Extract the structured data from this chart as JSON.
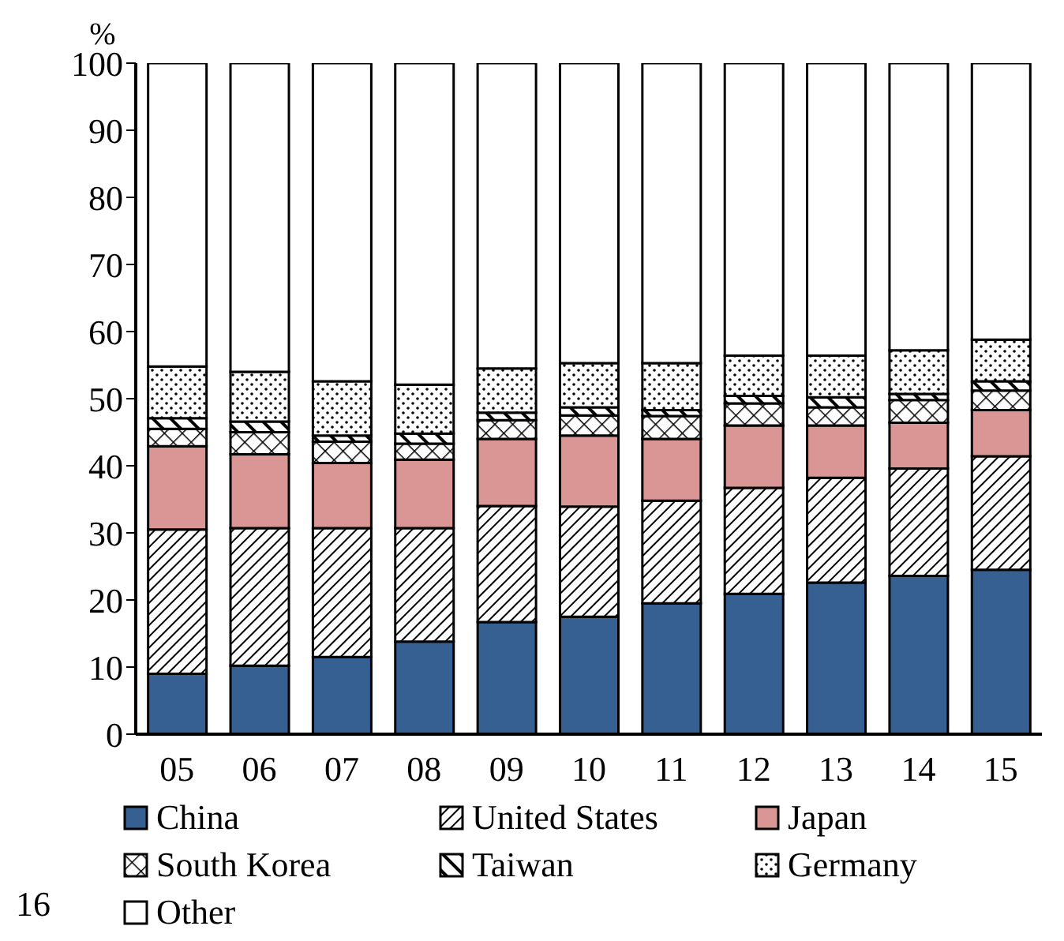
{
  "chart_data": {
    "type": "bar",
    "stacked": true,
    "ylabel": "%",
    "categories": [
      "05",
      "06",
      "07",
      "08",
      "09",
      "10",
      "11",
      "12",
      "13",
      "14",
      "15"
    ],
    "series": [
      {
        "name": "China",
        "color": "#376092",
        "values": [
          9.0,
          10.2,
          11.5,
          13.8,
          16.7,
          17.5,
          19.5,
          20.9,
          22.6,
          23.6,
          24.5
        ]
      },
      {
        "name": "United States",
        "color": "#000000",
        "values": [
          21.5,
          20.5,
          19.2,
          16.9,
          17.3,
          16.4,
          15.3,
          15.8,
          15.6,
          16.0,
          16.9
        ]
      },
      {
        "name": "Japan",
        "color": "#d99694",
        "values": [
          12.4,
          11.0,
          9.7,
          10.2,
          10.0,
          10.6,
          9.2,
          9.3,
          7.8,
          6.8,
          6.9
        ]
      },
      {
        "name": "South Korea",
        "color": "#000000",
        "values": [
          2.6,
          3.3,
          3.2,
          2.4,
          2.8,
          3.0,
          3.4,
          3.3,
          2.7,
          3.4,
          2.9
        ]
      },
      {
        "name": "Taiwan",
        "color": "#000000",
        "values": [
          1.6,
          1.6,
          0.9,
          1.5,
          1.1,
          1.2,
          0.9,
          1.1,
          1.5,
          0.9,
          1.4
        ]
      },
      {
        "name": "Germany",
        "color": "#000000",
        "values": [
          7.7,
          7.4,
          8.1,
          7.3,
          6.6,
          6.6,
          7.0,
          6.0,
          6.2,
          6.5,
          6.2
        ]
      },
      {
        "name": "Other",
        "color": "#ffffff",
        "values": [
          45.2,
          46.0,
          47.4,
          47.9,
          45.5,
          44.7,
          44.7,
          43.6,
          43.6,
          42.8,
          41.2
        ]
      }
    ],
    "ylim": [
      0,
      100
    ],
    "yticks": [
      0,
      10,
      20,
      30,
      40,
      50,
      60,
      70,
      80,
      90,
      100
    ],
    "grid": false,
    "legend": "bottom",
    "annotations": [
      "16"
    ]
  }
}
